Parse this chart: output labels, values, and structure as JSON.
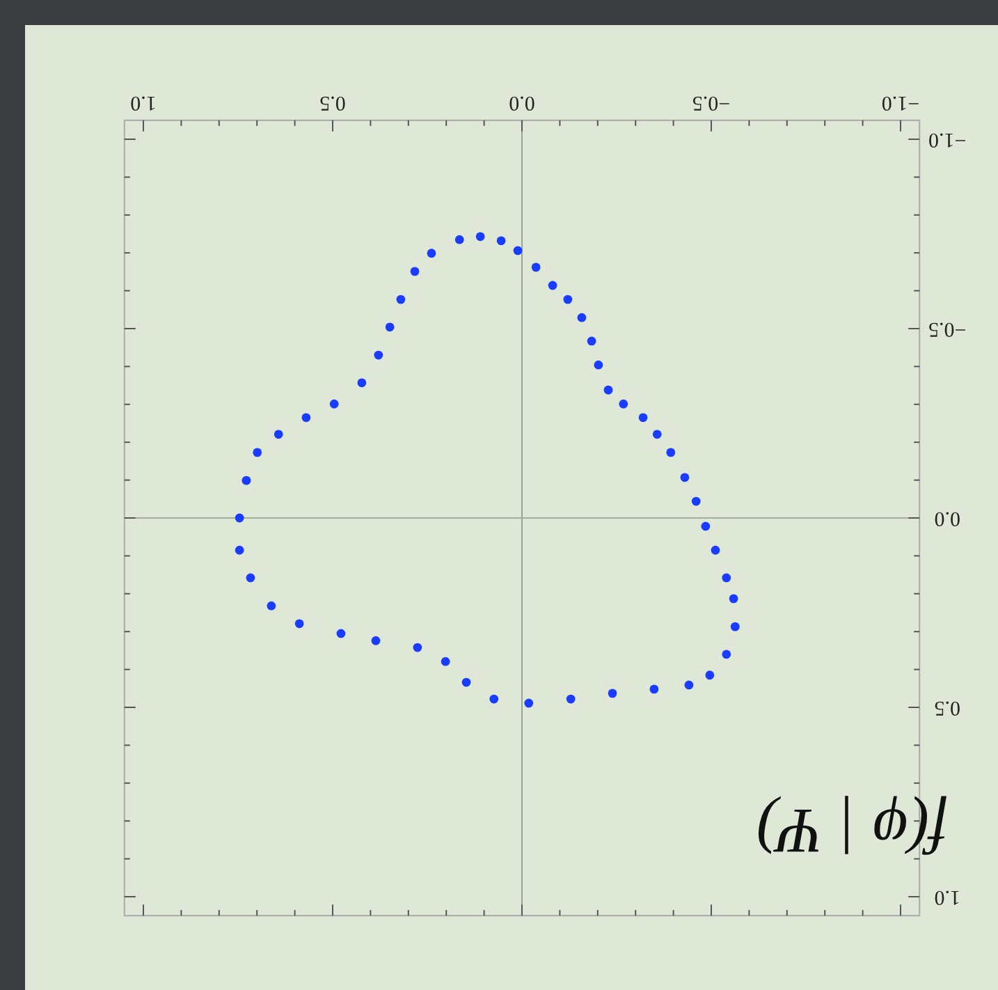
{
  "chart_data": {
    "type": "scatter",
    "ylabel": "f(φ | Ψ)",
    "xlim": [
      1.05,
      -1.05
    ],
    "ylim": [
      1.05,
      -1.05
    ],
    "xticks": [
      {
        "value": -1,
        "label": "−1.0"
      },
      {
        "value": -0.5,
        "label": "−0.5"
      },
      {
        "value": 0,
        "label": "0.0"
      },
      {
        "value": 0.5,
        "label": "0.5"
      },
      {
        "value": 1,
        "label": "1.0"
      }
    ],
    "yticks": [
      {
        "value": -1,
        "label": "−1.0"
      },
      {
        "value": -0.5,
        "label": "−0.5"
      },
      {
        "value": 0,
        "label": "0.0"
      },
      {
        "value": 0.5,
        "label": "0.5"
      },
      {
        "value": 1,
        "label": "1.0"
      }
    ],
    "ref_lines": [
      {
        "axis": "x",
        "value": 0,
        "color": "#9aa39a"
      },
      {
        "axis": "y",
        "value": 0,
        "color": "#a3aca3"
      }
    ],
    "marker": "circle",
    "grid": false,
    "series": [
      {
        "color": "#1a3cff",
        "x": [
          0.165,
          0.11,
          0.055,
          0.011,
          -0.037,
          -0.081,
          -0.121,
          -0.158,
          -0.184,
          -0.202,
          -0.228,
          -0.268,
          -0.32,
          -0.357,
          -0.393,
          -0.43,
          -0.46,
          -0.485,
          -0.511,
          -0.54,
          -0.559,
          -0.563,
          -0.54,
          -0.496,
          -0.441,
          -0.349,
          -0.239,
          -0.129,
          -0.018,
          0.074,
          0.147,
          0.202,
          0.276,
          0.386,
          0.478,
          0.588,
          0.662,
          0.717,
          0.746,
          0.746,
          0.728,
          0.699,
          0.643,
          0.57,
          0.496,
          0.423,
          0.379,
          0.349,
          0.32,
          0.283,
          0.239
        ],
        "values": [
          -0.735,
          -0.743,
          -0.732,
          -0.706,
          -0.662,
          -0.614,
          -0.577,
          -0.529,
          -0.467,
          -0.404,
          -0.338,
          -0.301,
          -0.265,
          -0.221,
          -0.173,
          -0.107,
          -0.044,
          0.022,
          0.085,
          0.158,
          0.213,
          0.287,
          0.36,
          0.415,
          0.441,
          0.452,
          0.463,
          0.478,
          0.489,
          0.478,
          0.434,
          0.379,
          0.342,
          0.324,
          0.305,
          0.279,
          0.232,
          0.158,
          0.085,
          0,
          -0.099,
          -0.173,
          -0.221,
          -0.265,
          -0.301,
          -0.357,
          -0.43,
          -0.504,
          -0.577,
          -0.651,
          -0.699
        ]
      }
    ]
  }
}
